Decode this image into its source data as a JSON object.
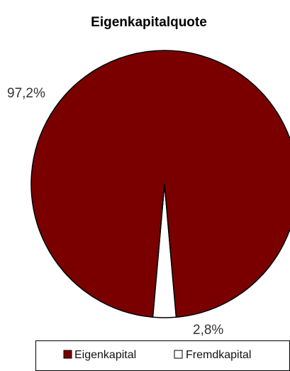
{
  "chart_data": {
    "type": "pie",
    "title": "Eigenkapitalquote",
    "categories": [
      "Eigenkapital",
      "Fremdkapital"
    ],
    "values": [
      97.2,
      2.8
    ],
    "labels": [
      "97,2%",
      "2,8%"
    ],
    "colors": [
      "#7a0000",
      "#ffffff"
    ],
    "legend_position": "bottom"
  }
}
